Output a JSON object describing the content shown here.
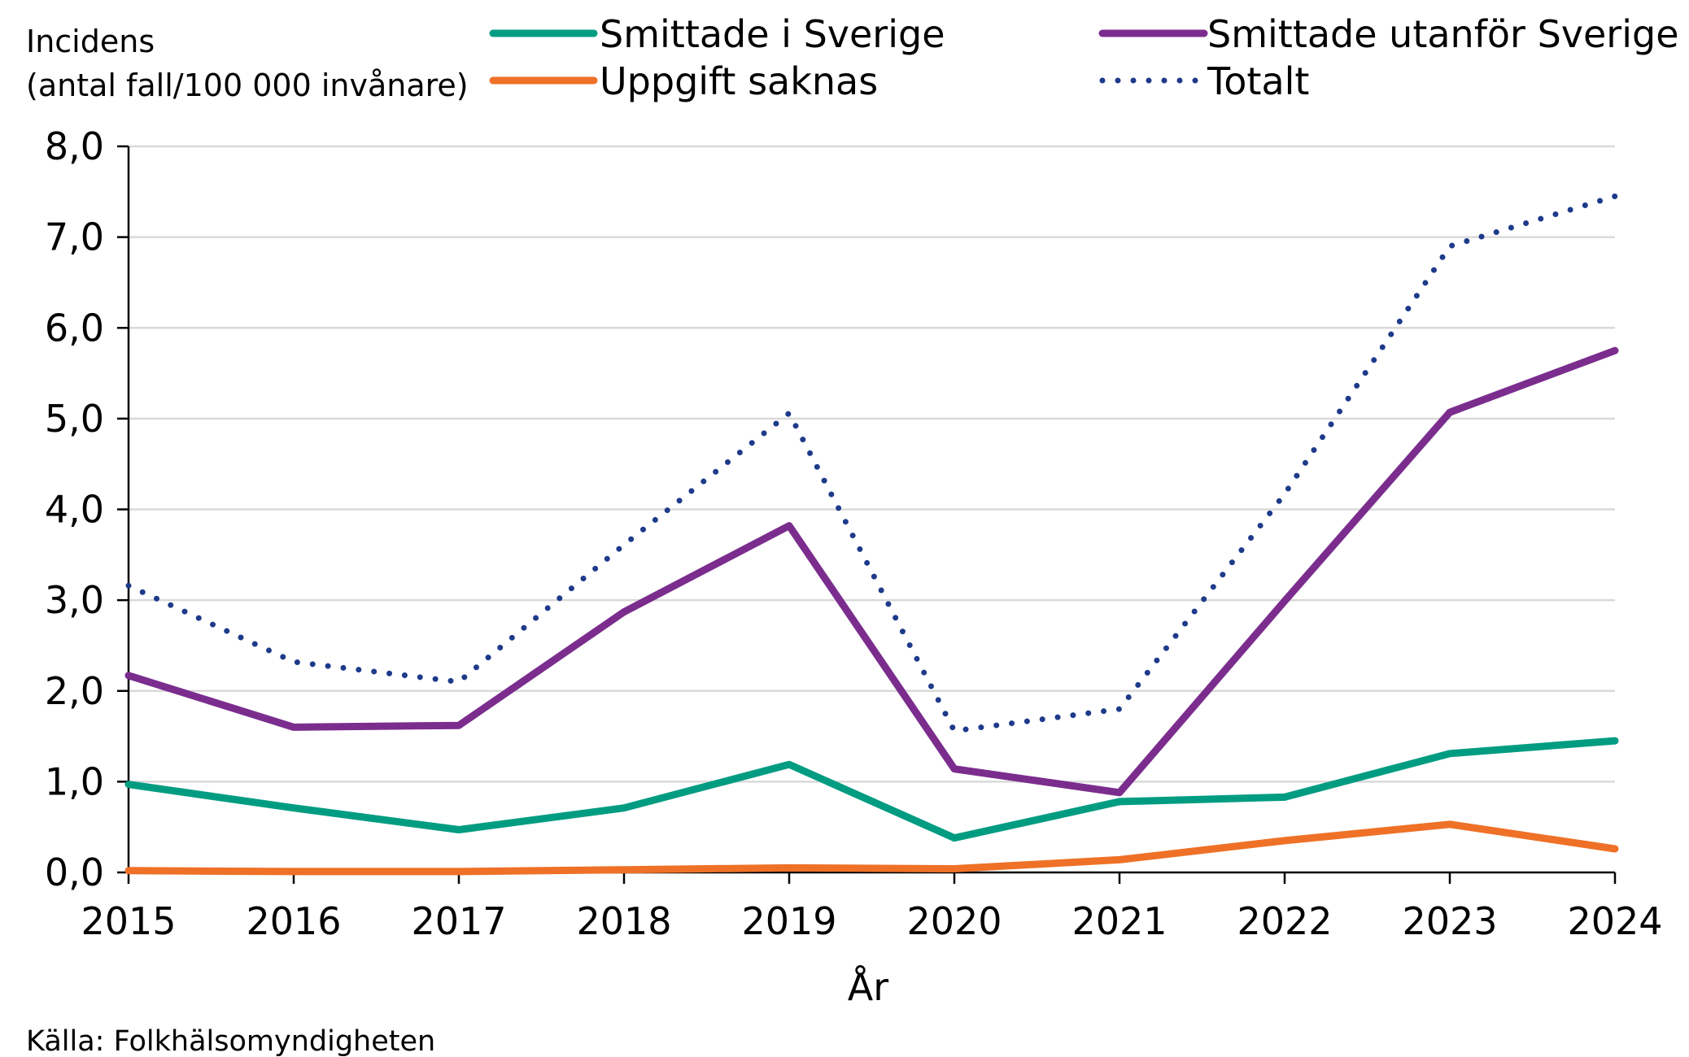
{
  "chart_data": {
    "type": "line",
    "ylabel_line1": "Incidens",
    "ylabel_line2": "(antal fall/100 000 invånare)",
    "xlabel": "År",
    "source": "Källa: Folkhälsomyndigheten",
    "ylim": [
      0,
      8
    ],
    "yticks": [
      0,
      1,
      2,
      3,
      4,
      5,
      6,
      7,
      8
    ],
    "ytick_labels": [
      "0,0",
      "1,0",
      "2,0",
      "3,0",
      "4,0",
      "5,0",
      "6,0",
      "7,0",
      "8,0"
    ],
    "x": [
      "2015",
      "2016",
      "2017",
      "2018",
      "2019",
      "2020",
      "2021",
      "2022",
      "2023",
      "2024"
    ],
    "series": [
      {
        "name": "Smittade i Sverige",
        "color": "#009c82",
        "dash": "solid",
        "values": [
          0.97,
          0.71,
          0.47,
          0.71,
          1.19,
          0.38,
          0.78,
          0.83,
          1.31,
          1.45
        ]
      },
      {
        "name": "Smittade utanför Sverige",
        "color": "#7b2d8e",
        "dash": "solid",
        "values": [
          2.17,
          1.6,
          1.62,
          2.87,
          3.82,
          1.14,
          0.88,
          2.99,
          5.07,
          5.75
        ]
      },
      {
        "name": "Uppgift saknas",
        "color": "#ee7127",
        "dash": "solid",
        "values": [
          0.02,
          0.01,
          0.01,
          0.03,
          0.05,
          0.04,
          0.14,
          0.35,
          0.53,
          0.26
        ]
      },
      {
        "name": "Totalt",
        "color": "#1e3a8a",
        "dash": "dotted",
        "values": [
          3.16,
          2.32,
          2.1,
          3.61,
          5.06,
          1.56,
          1.8,
          4.17,
          6.9,
          7.45
        ]
      }
    ]
  }
}
